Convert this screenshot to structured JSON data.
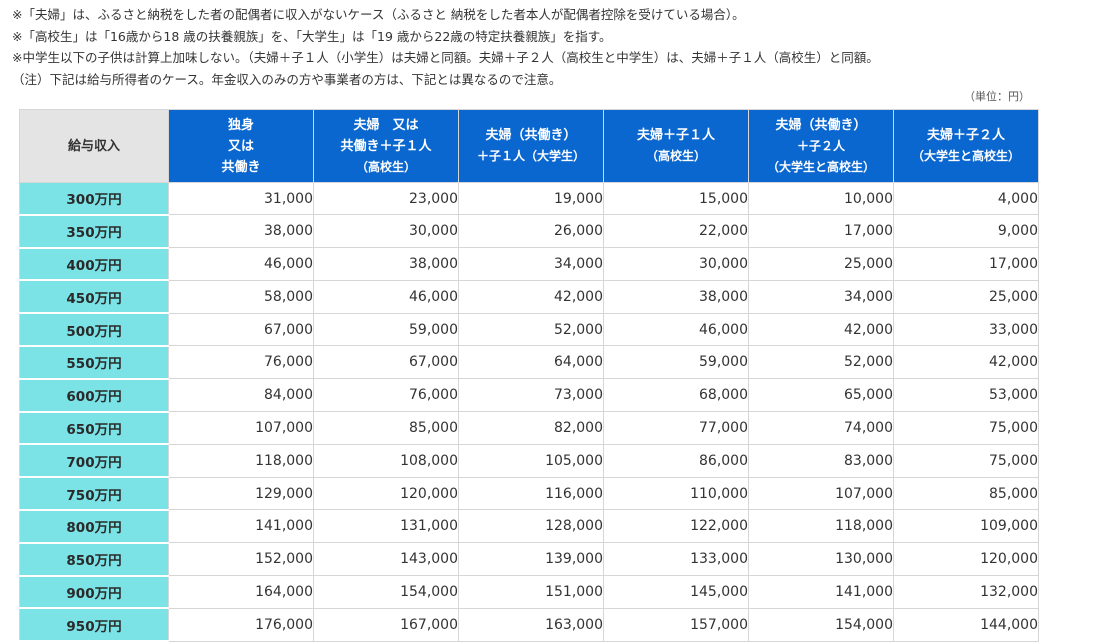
{
  "notes": [
    "※「夫婦」は、ふるさと納税をした者の配偶者に収入がないケース（ふるさと 納税をした者本人が配偶者控除を受けている場合）。",
    "※「高校生」は「16歳から18 歳の扶養親族」を、「大学生」は「19 歳から22歳の特定扶養親族」を指す。",
    "※中学生以下の子供は計算上加味しない。（夫婦＋子１人（小学生）は夫婦と同額。夫婦＋子２人（高校生と中学生）は、夫婦＋子１人（高校生）と同額。",
    "（注）下記は給与所得者のケース。年金収入のみの方や事業者の方は、下記とは異なるので注意。"
  ],
  "unit": "（単位：円）",
  "table": {
    "corner": "給与収入",
    "headers": [
      {
        "lines": [
          "独身",
          "又は",
          "共働き"
        ],
        "small": false
      },
      {
        "lines": [
          "夫婦　又は",
          "共働き＋子１人",
          "（高校生）"
        ],
        "small": false
      },
      {
        "lines": [
          "夫婦（共働き）",
          "＋子１人（大学生）"
        ],
        "small": false
      },
      {
        "lines": [
          "夫婦＋子１人",
          "（高校生）"
        ],
        "small": false
      },
      {
        "lines": [
          "夫婦（共働き）",
          "＋子２人",
          "（大学生と高校生）"
        ],
        "small": false
      },
      {
        "lines": [
          "夫婦＋子２人",
          "（大学生と高校生）"
        ],
        "small": false
      }
    ],
    "rows": [
      {
        "income": "300万円",
        "values": [
          "31,000",
          "23,000",
          "19,000",
          "15,000",
          "10,000",
          "4,000"
        ]
      },
      {
        "income": "350万円",
        "values": [
          "38,000",
          "30,000",
          "26,000",
          "22,000",
          "17,000",
          "9,000"
        ]
      },
      {
        "income": "400万円",
        "values": [
          "46,000",
          "38,000",
          "34,000",
          "30,000",
          "25,000",
          "17,000"
        ]
      },
      {
        "income": "450万円",
        "values": [
          "58,000",
          "46,000",
          "42,000",
          "38,000",
          "34,000",
          "25,000"
        ]
      },
      {
        "income": "500万円",
        "values": [
          "67,000",
          "59,000",
          "52,000",
          "46,000",
          "42,000",
          "33,000"
        ]
      },
      {
        "income": "550万円",
        "values": [
          "76,000",
          "67,000",
          "64,000",
          "59,000",
          "52,000",
          "42,000"
        ]
      },
      {
        "income": "600万円",
        "values": [
          "84,000",
          "76,000",
          "73,000",
          "68,000",
          "65,000",
          "53,000"
        ]
      },
      {
        "income": "650万円",
        "values": [
          "107,000",
          "85,000",
          "82,000",
          "77,000",
          "74,000",
          "75,000"
        ]
      },
      {
        "income": "700万円",
        "values": [
          "118,000",
          "108,000",
          "105,000",
          "86,000",
          "83,000",
          "75,000"
        ]
      },
      {
        "income": "750万円",
        "values": [
          "129,000",
          "120,000",
          "116,000",
          "110,000",
          "107,000",
          "85,000"
        ]
      },
      {
        "income": "800万円",
        "values": [
          "141,000",
          "131,000",
          "128,000",
          "122,000",
          "118,000",
          "109,000"
        ]
      },
      {
        "income": "850万円",
        "values": [
          "152,000",
          "143,000",
          "139,000",
          "133,000",
          "130,000",
          "120,000"
        ]
      },
      {
        "income": "900万円",
        "values": [
          "164,000",
          "154,000",
          "151,000",
          "145,000",
          "141,000",
          "132,000"
        ]
      },
      {
        "income": "950万円",
        "values": [
          "176,000",
          "167,000",
          "163,000",
          "157,000",
          "154,000",
          "144,000"
        ]
      }
    ]
  }
}
